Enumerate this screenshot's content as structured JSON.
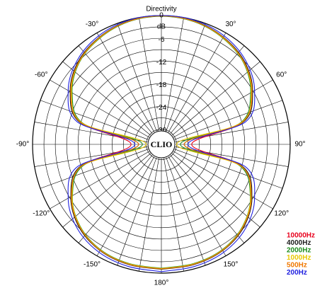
{
  "chart_data": {
    "type": "polar",
    "title": "Directivity",
    "r_axis_label": "dB",
    "logo": "CLIO",
    "rlim": [
      -34,
      0
    ],
    "rticks": [
      0,
      -6,
      -12,
      -18,
      -24,
      -30
    ],
    "r_minor_ticks": [
      -3,
      -9,
      -15,
      -21,
      -27,
      -33
    ],
    "thetaticks": [
      {
        "value": 30,
        "label": "30°"
      },
      {
        "value": 60,
        "label": "60°"
      },
      {
        "value": 90,
        "label": "90°"
      },
      {
        "value": 120,
        "label": "120°"
      },
      {
        "value": 150,
        "label": "150°"
      },
      {
        "value": 180,
        "label": "180°"
      },
      {
        "value": -150,
        "label": "-150°"
      },
      {
        "value": -120,
        "label": "-120°"
      },
      {
        "value": -90,
        "label": "-90°"
      },
      {
        "value": -60,
        "label": "-60°"
      },
      {
        "value": -30,
        "label": "-30°"
      }
    ],
    "theta_minor_ticks": [
      0,
      10,
      20,
      40,
      50,
      70,
      80,
      100,
      110,
      130,
      140,
      160,
      170,
      -10,
      -20,
      -40,
      -50,
      -70,
      -80,
      -100,
      -110,
      -130,
      -140,
      -160,
      -170
    ],
    "theta": [
      -180,
      -165,
      -150,
      -135,
      -120,
      -105,
      -90,
      -75,
      -60,
      -45,
      -30,
      -15,
      0,
      15,
      30,
      45,
      60,
      75,
      90,
      105,
      120,
      135,
      150,
      165,
      180
    ],
    "series": [
      {
        "name": "10000Hz",
        "color": "#e8001c",
        "values": [
          -1.1,
          -1.2,
          -1.7,
          -3.3,
          -6.5,
          -12.2,
          -26,
          -12,
          -6.3,
          -3.1,
          -1.4,
          -0.4,
          -0.1,
          -0.4,
          -1.4,
          -3.1,
          -6.3,
          -12,
          -26,
          -12.2,
          -6.5,
          -3.3,
          -1.7,
          -1.2,
          -1.1
        ]
      },
      {
        "name": "4000Hz",
        "color": "#202020",
        "values": [
          -1.0,
          -1.1,
          -1.6,
          -3.2,
          -6.4,
          -12,
          -28,
          -11.8,
          -6.2,
          -3.0,
          -1.3,
          -0.3,
          0,
          -0.3,
          -1.3,
          -3.0,
          -6.2,
          -11.8,
          -28,
          -12,
          -6.4,
          -3.2,
          -1.6,
          -1.1,
          -1.0
        ]
      },
      {
        "name": "2000Hz",
        "color": "#1e8c1e",
        "values": [
          -1.3,
          -1.4,
          -1.9,
          -3.6,
          -6.9,
          -12.8,
          -29,
          -12.6,
          -6.8,
          -3.4,
          -1.6,
          -0.5,
          -0.2,
          -0.5,
          -1.6,
          -3.4,
          -6.8,
          -12.6,
          -29,
          -12.8,
          -6.9,
          -3.6,
          -1.9,
          -1.4,
          -1.3
        ]
      },
      {
        "name": "1000Hz",
        "color": "#e8c800",
        "values": [
          -1.2,
          -1.3,
          -1.8,
          -3.5,
          -6.8,
          -12.5,
          -30,
          -12.4,
          -6.6,
          -3.3,
          -1.5,
          -0.4,
          -0.1,
          -0.4,
          -1.5,
          -3.3,
          -6.6,
          -12.4,
          -30,
          -12.5,
          -6.8,
          -3.5,
          -1.8,
          -1.3,
          -1.2
        ]
      },
      {
        "name": "500Hz",
        "color": "#f07800",
        "values": [
          -1.1,
          -1.2,
          -1.7,
          -3.4,
          -6.6,
          -12.3,
          -28,
          -12.1,
          -6.4,
          -3.2,
          -1.4,
          -0.4,
          -0.1,
          -0.4,
          -1.4,
          -3.2,
          -6.4,
          -12.1,
          -28,
          -12.3,
          -6.6,
          -3.4,
          -1.7,
          -1.2,
          -1.1
        ]
      },
      {
        "name": "200Hz",
        "color": "#2020e0",
        "values": [
          -0.4,
          -0.6,
          -1.1,
          -2.6,
          -5.6,
          -11,
          -27,
          -11,
          -5.6,
          -2.6,
          -0.9,
          -0.1,
          0,
          -0.1,
          -0.9,
          -2.6,
          -5.6,
          -11,
          -27,
          -11,
          -5.6,
          -2.6,
          -1.1,
          -0.6,
          -0.4
        ]
      }
    ]
  }
}
